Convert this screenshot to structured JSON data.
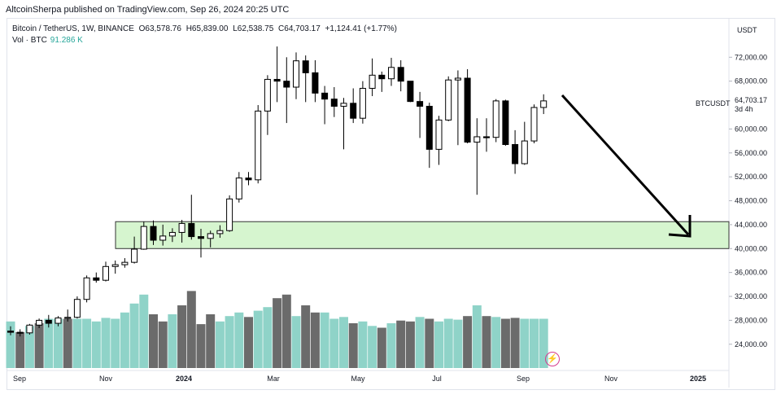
{
  "header": {
    "publisher": "AltcoinSherpa published on TradingView.com, Sep 26, 2024 20:25 UTC"
  },
  "legend": {
    "symbol": "Bitcoin / TetherUS, 1W, BINANCE",
    "open": "O63,578.76",
    "high": "H65,839.00",
    "low": "L62,538.75",
    "close": "C64,703.17",
    "change": "+1,124.41 (+1.77%)",
    "vol_label": "Vol · BTC",
    "vol_value": "91.286 K"
  },
  "price_scale": {
    "currency": "USDT",
    "ticks": [
      "72,000.00",
      "68,000.00",
      "60,000.00",
      "56,000.00",
      "52,000.00",
      "48,000.00",
      "44,000.00",
      "40,000.00",
      "36,000.00",
      "32,000.00",
      "28,000.00",
      "24,000.00"
    ],
    "last_price": "64,703.17",
    "last_time": "3d 4h",
    "symbol_tag": "BTCUSDT"
  },
  "time_scale": [
    "Sep",
    "Nov",
    "2024",
    "Mar",
    "May",
    "Jul",
    "Sep",
    "Nov",
    "2025"
  ],
  "colors": {
    "up_candle": "#ffffff",
    "down_candle": "#000000",
    "vol_up": "#8fd3c8",
    "vol_down": "#6b6b6b",
    "zone_fill": "#d6f5cf",
    "arrow": "#000000"
  },
  "annotations": {
    "support_zone": [
      40000,
      44500
    ],
    "arrow": "down projection toward zone"
  },
  "chart_data": {
    "type": "candlestick",
    "title": "Bitcoin / TetherUS, 1W, BINANCE",
    "ylabel": "USDT",
    "ylim": [
      20000,
      76000
    ],
    "grid": false,
    "candles": [
      [
        26200,
        27000,
        25500,
        26000
      ],
      [
        26000,
        26500,
        25300,
        25900
      ],
      [
        25900,
        27400,
        25600,
        27200
      ],
      [
        27200,
        28300,
        26700,
        28000
      ],
      [
        28000,
        28900,
        26800,
        27500
      ],
      [
        27500,
        28700,
        27000,
        28400
      ],
      [
        28400,
        29800,
        27800,
        28500
      ],
      [
        28500,
        32000,
        28300,
        31500
      ],
      [
        31500,
        35500,
        31000,
        35100
      ],
      [
        35100,
        36000,
        34300,
        34700
      ],
      [
        34700,
        37800,
        34500,
        37000
      ],
      [
        37000,
        38000,
        35800,
        37300
      ],
      [
        37300,
        38400,
        36800,
        37700
      ],
      [
        37700,
        42000,
        37500,
        39900
      ],
      [
        39900,
        44500,
        39800,
        43700
      ],
      [
        43700,
        44700,
        40600,
        41400
      ],
      [
        41400,
        44000,
        40500,
        42100
      ],
      [
        42100,
        43400,
        41100,
        42700
      ],
      [
        42700,
        44800,
        41000,
        44200
      ],
      [
        44200,
        49000,
        41500,
        42000
      ],
      [
        42000,
        43300,
        38500,
        41700
      ],
      [
        41700,
        43000,
        40200,
        42500
      ],
      [
        42500,
        43900,
        41800,
        43000
      ],
      [
        43000,
        48900,
        42800,
        48300
      ],
      [
        48300,
        52800,
        47700,
        51800
      ],
      [
        51800,
        52800,
        50600,
        51500
      ],
      [
        51500,
        64000,
        50900,
        63000
      ],
      [
        63000,
        69000,
        59000,
        68300
      ],
      [
        68300,
        73800,
        64500,
        68000
      ],
      [
        68000,
        72000,
        61000,
        67000
      ],
      [
        67000,
        72800,
        65000,
        71400
      ],
      [
        71400,
        72300,
        64500,
        69400
      ],
      [
        69400,
        71500,
        64500,
        66000
      ],
      [
        66000,
        67200,
        60800,
        65000
      ],
      [
        65000,
        67000,
        62000,
        63800
      ],
      [
        63800,
        65200,
        56600,
        64300
      ],
      [
        64300,
        66800,
        61000,
        61800
      ],
      [
        61800,
        68000,
        60900,
        66800
      ],
      [
        66800,
        71800,
        65500,
        69000
      ],
      [
        69000,
        69600,
        66200,
        68400
      ],
      [
        68400,
        71900,
        67200,
        70300
      ],
      [
        70300,
        71500,
        66300,
        68000
      ],
      [
        68000,
        68000,
        64500,
        64600
      ],
      [
        64600,
        66200,
        58500,
        63800
      ],
      [
        63800,
        64400,
        53500,
        56600
      ],
      [
        56600,
        62200,
        54000,
        61500
      ],
      [
        61500,
        68800,
        61300,
        68200
      ],
      [
        68200,
        69800,
        57300,
        68500
      ],
      [
        68500,
        70000,
        57600,
        57800
      ],
      [
        57800,
        61800,
        49000,
        58700
      ],
      [
        58700,
        61800,
        56200,
        58600
      ],
      [
        58600,
        65000,
        57800,
        64700
      ],
      [
        64700,
        64900,
        57200,
        57400
      ],
      [
        57400,
        59800,
        52500,
        54200
      ],
      [
        54200,
        61200,
        54000,
        58000
      ],
      [
        58000,
        64100,
        57600,
        63600
      ],
      [
        63600,
        65800,
        62500,
        64700
      ]
    ],
    "volume_dir": [
      1,
      0,
      1,
      0,
      1,
      1,
      0,
      1,
      1,
      1,
      1,
      1,
      1,
      1,
      1,
      0,
      0,
      1,
      0,
      0,
      0,
      0,
      1,
      1,
      1,
      0,
      1,
      1,
      0,
      0,
      1,
      0,
      0,
      1,
      1,
      1,
      0,
      1,
      1,
      0,
      1,
      0,
      0,
      1,
      0,
      1,
      1,
      1,
      0,
      1,
      0,
      1,
      0,
      0,
      1,
      1,
      1
    ],
    "volume_rel": [
      0.52,
      0.4,
      0.47,
      0.5,
      0.55,
      0.55,
      0.55,
      0.55,
      0.55,
      0.52,
      0.56,
      0.55,
      0.62,
      0.72,
      0.82,
      0.6,
      0.52,
      0.6,
      0.7,
      0.86,
      0.49,
      0.6,
      0.52,
      0.58,
      0.62,
      0.57,
      0.64,
      0.68,
      0.78,
      0.82,
      0.58,
      0.7,
      0.62,
      0.62,
      0.55,
      0.57,
      0.5,
      0.52,
      0.47,
      0.45,
      0.5,
      0.53,
      0.52,
      0.57,
      0.55,
      0.52,
      0.55,
      0.54,
      0.58,
      0.7,
      0.58,
      0.57,
      0.55,
      0.56,
      0.55,
      0.55,
      0.55
    ]
  }
}
